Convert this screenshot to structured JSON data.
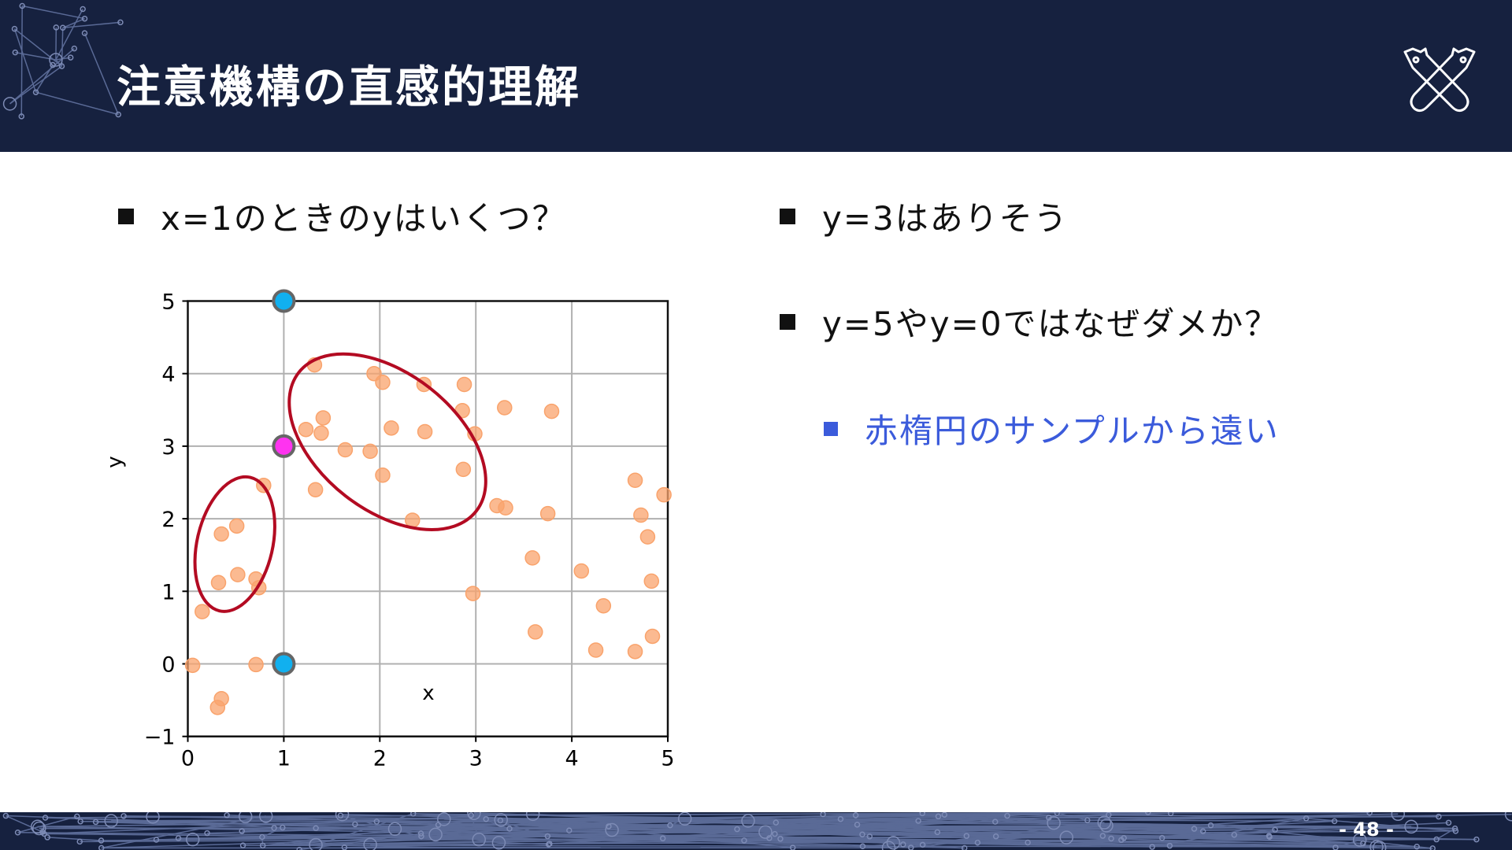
{
  "header": {
    "title": "注意機構の直感的理解",
    "logo": "crossed-tools-logo"
  },
  "left": {
    "bullet": "x=1のときのyはいくつ？"
  },
  "right": {
    "bullets": [
      "y=3はありそう",
      "y=5やy=0ではなぜダメか？"
    ],
    "sub_bullet": "赤楕円のサンプルから遠い"
  },
  "footer": {
    "page": "- 48 -"
  },
  "colors": {
    "header_bg": "#16213f",
    "sample": "#f9a36c",
    "query": "#11b0ef",
    "good": "#ff33f0",
    "ellipse": "#b30b22",
    "sub_text": "#3b5bdb"
  },
  "chart_data": {
    "type": "scatter",
    "xlabel": "x",
    "ylabel": "y",
    "xlim": [
      0,
      5
    ],
    "ylim": [
      -1,
      5
    ],
    "xticks": [
      "0",
      "1",
      "2",
      "3",
      "4",
      "5"
    ],
    "yticks": [
      "−1",
      "0",
      "1",
      "2",
      "3",
      "4",
      "5"
    ],
    "grid": true,
    "samples": [
      [
        1.32,
        4.12
      ],
      [
        1.94,
        4.0
      ],
      [
        2.03,
        3.88
      ],
      [
        2.46,
        3.85
      ],
      [
        2.88,
        3.85
      ],
      [
        2.86,
        3.49
      ],
      [
        3.3,
        3.53
      ],
      [
        3.79,
        3.48
      ],
      [
        1.41,
        3.39
      ],
      [
        1.23,
        3.23
      ],
      [
        1.39,
        3.18
      ],
      [
        2.12,
        3.25
      ],
      [
        2.47,
        3.2
      ],
      [
        2.99,
        3.17
      ],
      [
        1.64,
        2.95
      ],
      [
        1.9,
        2.93
      ],
      [
        2.03,
        2.6
      ],
      [
        2.87,
        2.68
      ],
      [
        1.33,
        2.4
      ],
      [
        0.79,
        2.46
      ],
      [
        3.22,
        2.18
      ],
      [
        3.31,
        2.15
      ],
      [
        3.75,
        2.07
      ],
      [
        2.34,
        1.98
      ],
      [
        4.66,
        2.53
      ],
      [
        4.96,
        2.33
      ],
      [
        4.72,
        2.05
      ],
      [
        4.79,
        1.75
      ],
      [
        4.83,
        1.14
      ],
      [
        0.51,
        1.9
      ],
      [
        0.35,
        1.79
      ],
      [
        0.52,
        1.23
      ],
      [
        0.32,
        1.12
      ],
      [
        0.71,
        1.17
      ],
      [
        0.74,
        1.05
      ],
      [
        0.15,
        0.72
      ],
      [
        3.59,
        1.46
      ],
      [
        4.1,
        1.28
      ],
      [
        2.97,
        0.97
      ],
      [
        4.33,
        0.8
      ],
      [
        3.62,
        0.44
      ],
      [
        4.25,
        0.19
      ],
      [
        4.66,
        0.17
      ],
      [
        4.84,
        0.38
      ],
      [
        0.05,
        -0.02
      ],
      [
        0.71,
        -0.01
      ],
      [
        0.35,
        -0.48
      ],
      [
        0.31,
        -0.6
      ]
    ],
    "candidates": [
      {
        "x": 1,
        "y": 5,
        "kind": "bad"
      },
      {
        "x": 1,
        "y": 3,
        "kind": "good"
      },
      {
        "x": 1,
        "y": 0,
        "kind": "bad"
      }
    ],
    "ellipses": [
      {
        "cx": 0.49,
        "cy": 1.65
      },
      {
        "cx": 2.08,
        "cy": 3.06
      }
    ]
  }
}
